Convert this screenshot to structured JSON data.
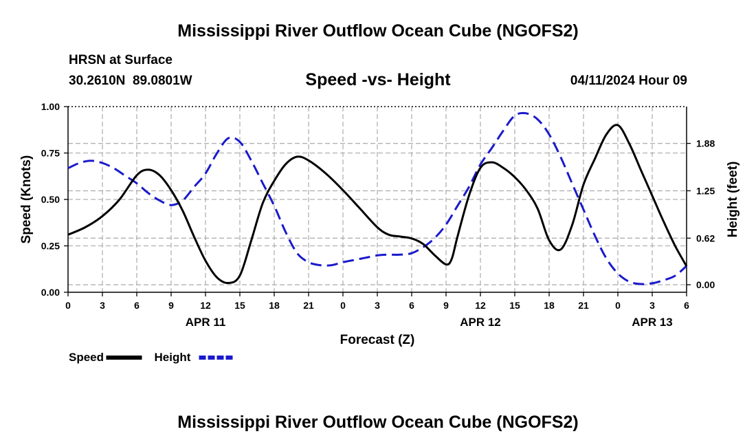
{
  "header": {
    "title": "Mississippi River Outflow Ocean Cube (NGOFS2)",
    "station": "HRSN at Surface",
    "coords": "30.2610N  89.0801W",
    "chart_subtitle": "Speed -vs- Height",
    "date": "04/11/2024 Hour 09"
  },
  "footer": {
    "title": "Mississippi River Outflow Ocean Cube (NGOFS2)"
  },
  "chart_data": {
    "type": "line",
    "title": "Speed -vs- Height",
    "xlabel": "Forecast (Z)",
    "ylabel": "Speed (Knots)",
    "y2label": "Height (feet)",
    "x_range_hours": [
      0,
      54
    ],
    "ylim": [
      0,
      1
    ],
    "y2lim": [
      -0.1,
      2.37
    ],
    "x_ticks": [
      {
        "h": 0,
        "label": "0"
      },
      {
        "h": 3,
        "label": "3"
      },
      {
        "h": 6,
        "label": "6"
      },
      {
        "h": 9,
        "label": "9"
      },
      {
        "h": 12,
        "label": "12"
      },
      {
        "h": 15,
        "label": "15"
      },
      {
        "h": 18,
        "label": "18"
      },
      {
        "h": 21,
        "label": "21"
      },
      {
        "h": 24,
        "label": "0"
      },
      {
        "h": 27,
        "label": "3"
      },
      {
        "h": 30,
        "label": "6"
      },
      {
        "h": 33,
        "label": "9"
      },
      {
        "h": 36,
        "label": "12"
      },
      {
        "h": 39,
        "label": "15"
      },
      {
        "h": 42,
        "label": "18"
      },
      {
        "h": 45,
        "label": "21"
      },
      {
        "h": 48,
        "label": "0"
      },
      {
        "h": 51,
        "label": "3"
      },
      {
        "h": 54,
        "label": "6"
      }
    ],
    "date_labels": [
      {
        "h": 12,
        "label": "APR 11"
      },
      {
        "h": 36,
        "label": "APR 12"
      },
      {
        "h": 51,
        "label": "APR 13"
      }
    ],
    "y_ticks": [
      {
        "v": 0.0,
        "label": "0.00"
      },
      {
        "v": 0.25,
        "label": "0.25"
      },
      {
        "v": 0.5,
        "label": "0.50"
      },
      {
        "v": 0.75,
        "label": "0.75"
      },
      {
        "v": 1.0,
        "label": "1.00"
      }
    ],
    "y2_ticks": [
      {
        "v": 0.0,
        "label": "0.00"
      },
      {
        "v": 0.62,
        "label": "0.62"
      },
      {
        "v": 1.25,
        "label": "1.25"
      },
      {
        "v": 1.88,
        "label": "1.88"
      }
    ],
    "legend": [
      {
        "name": "Speed",
        "color": "#000000",
        "dash": "solid"
      },
      {
        "name": "Height",
        "color": "#1a1acc",
        "dash": "dashed"
      }
    ],
    "series": [
      {
        "name": "Speed",
        "axis": "left",
        "color": "#000000",
        "x": [
          0,
          1.5,
          3,
          4.5,
          6,
          7,
          8,
          9,
          10,
          11,
          12,
          13,
          14,
          15,
          16,
          17,
          18,
          19,
          20,
          21,
          22.5,
          24,
          25.5,
          27,
          28,
          29,
          30,
          31,
          32,
          33,
          33.5,
          34,
          35,
          36,
          37,
          38,
          39,
          40,
          41,
          42,
          43,
          44,
          45,
          46,
          47,
          48,
          49,
          50,
          51,
          52,
          53,
          54
        ],
        "values": [
          0.31,
          0.35,
          0.41,
          0.5,
          0.63,
          0.66,
          0.63,
          0.55,
          0.44,
          0.3,
          0.17,
          0.08,
          0.05,
          0.09,
          0.28,
          0.48,
          0.6,
          0.69,
          0.73,
          0.71,
          0.64,
          0.55,
          0.45,
          0.35,
          0.31,
          0.3,
          0.29,
          0.26,
          0.2,
          0.15,
          0.18,
          0.3,
          0.52,
          0.67,
          0.7,
          0.67,
          0.62,
          0.55,
          0.45,
          0.28,
          0.23,
          0.36,
          0.58,
          0.72,
          0.85,
          0.9,
          0.8,
          0.66,
          0.52,
          0.38,
          0.25,
          0.14
        ]
      },
      {
        "name": "Height",
        "axis": "right",
        "color": "#1a1acc",
        "x": [
          0,
          1,
          2,
          3,
          4,
          5,
          6,
          7,
          8,
          9,
          10,
          11,
          12,
          13,
          14,
          15,
          16,
          17,
          18,
          19,
          20,
          21,
          22,
          23,
          24,
          25,
          26,
          27,
          28,
          29,
          30,
          31,
          32,
          33,
          34,
          35,
          36,
          37,
          38,
          39,
          40,
          41,
          42,
          43,
          44,
          45,
          46,
          47,
          48,
          49,
          50,
          51,
          52,
          53,
          54
        ],
        "values": [
          1.55,
          1.62,
          1.65,
          1.62,
          1.55,
          1.45,
          1.35,
          1.22,
          1.12,
          1.06,
          1.12,
          1.3,
          1.48,
          1.75,
          1.95,
          1.9,
          1.65,
          1.35,
          1.05,
          0.7,
          0.42,
          0.3,
          0.26,
          0.26,
          0.3,
          0.33,
          0.36,
          0.39,
          0.4,
          0.4,
          0.42,
          0.5,
          0.62,
          0.8,
          1.05,
          1.3,
          1.6,
          1.82,
          2.05,
          2.25,
          2.28,
          2.2,
          2.0,
          1.7,
          1.35,
          1.0,
          0.65,
          0.35,
          0.15,
          0.04,
          0.01,
          0.02,
          0.06,
          0.12,
          0.25
        ]
      }
    ]
  }
}
